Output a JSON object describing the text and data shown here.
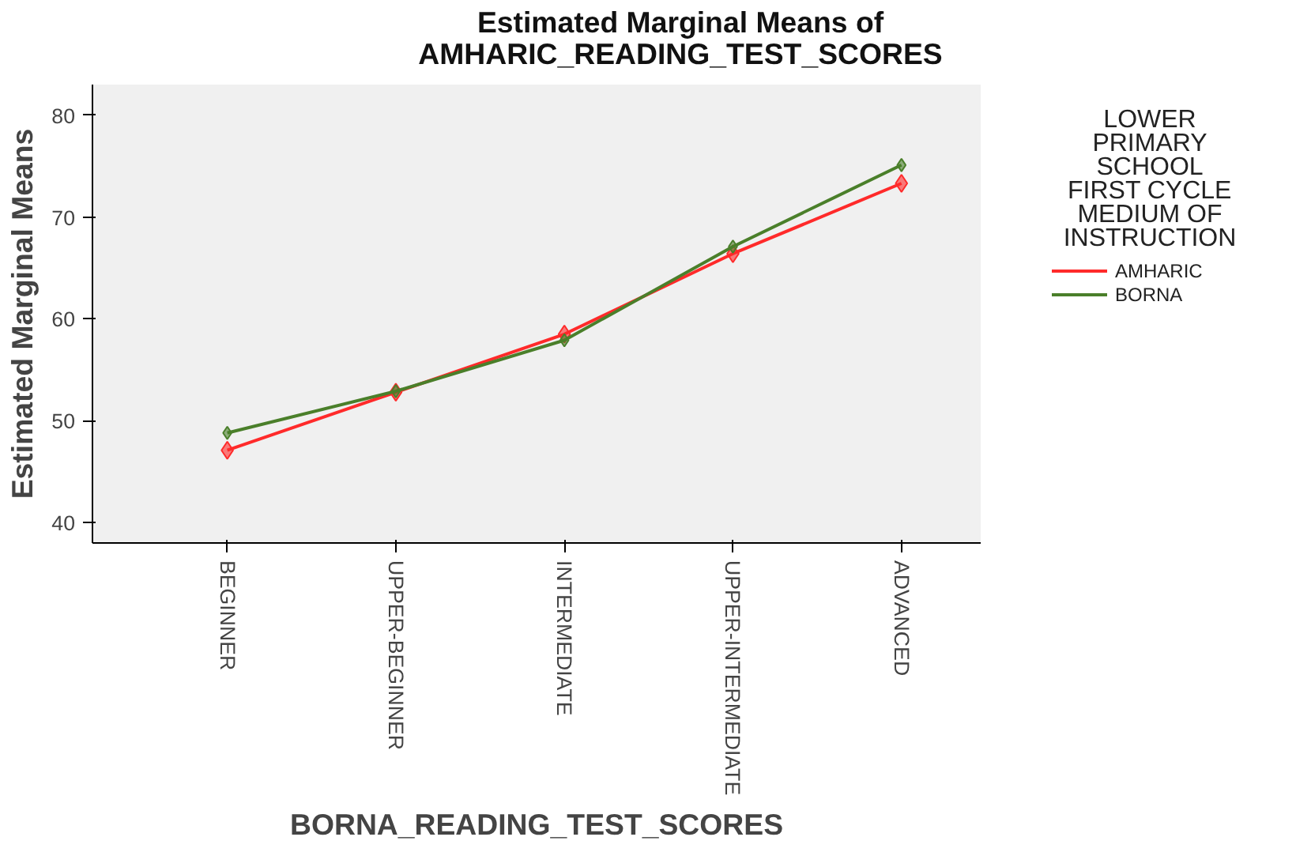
{
  "chart_data": {
    "type": "line",
    "title": "Estimated Marginal Means of\nAMHARIC_READING_TEST_SCORES",
    "xlabel": "BORNA_READING_TEST_SCORES",
    "ylabel": "Estimated Marginal Means",
    "legend_title": "LOWER\nPRIMARY\nSCHOOL\nFIRST CYCLE\nMEDIUM OF\nINSTRUCTION",
    "categories": [
      "BEGINNER",
      "UPPER-BEGINNER",
      "INTERMEDIATE",
      "UPPER-INTERMEDIATE",
      "ADVANCED"
    ],
    "series": [
      {
        "name": "AMHARIC",
        "color": "#ff2a2a",
        "values": [
          47.1,
          52.8,
          58.5,
          66.4,
          73.3
        ]
      },
      {
        "name": "BORNA",
        "color": "#4a7f2a",
        "values": [
          48.8,
          52.9,
          57.9,
          67.1,
          75.1
        ]
      }
    ],
    "ylim": [
      38,
      83
    ],
    "yticks": [
      40,
      50,
      60,
      70,
      80
    ],
    "grid": false,
    "legend": "right",
    "marker": "diamond",
    "line_style": "solid"
  }
}
